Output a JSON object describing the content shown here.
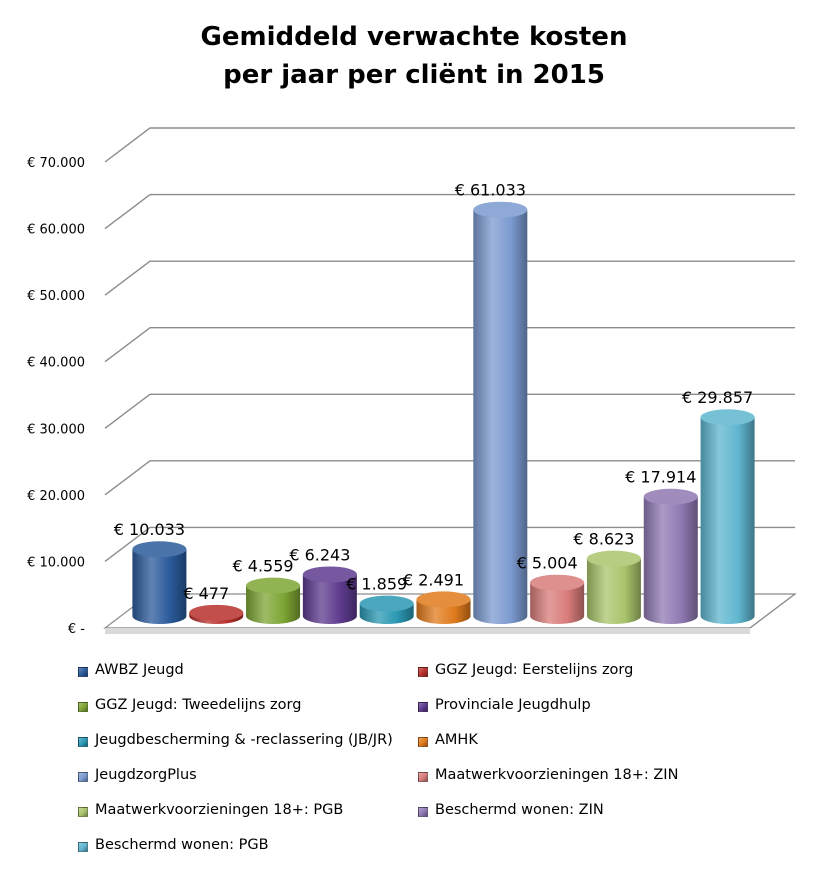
{
  "chart_data": {
    "type": "bar",
    "title": [
      "Gemiddeld verwachte kosten",
      "per jaar per cliënt in 2015"
    ],
    "ylim": [
      0,
      70000
    ],
    "yticks": [
      {
        "value": 0,
        "label": "€ -"
      },
      {
        "value": 10000,
        "label": "€ 10.000"
      },
      {
        "value": 20000,
        "label": "€ 20.000"
      },
      {
        "value": 30000,
        "label": "€ 30.000"
      },
      {
        "value": 40000,
        "label": "€ 40.000"
      },
      {
        "value": 50000,
        "label": "€ 50.000"
      },
      {
        "value": 60000,
        "label": "€ 60.000"
      },
      {
        "value": 70000,
        "label": "€ 70.000"
      }
    ],
    "grid": true,
    "legend_position": "bottom",
    "series": [
      {
        "name": "AWBZ Jeugd",
        "value": 10033,
        "label": "€ 10.033",
        "color": "#2a5a9b"
      },
      {
        "name": "GGZ Jeugd: Eerstelijns zorg",
        "value": 477,
        "label": "€ 477",
        "color": "#b8302c"
      },
      {
        "name": "GGZ Jeugd: Tweedelijns zorg",
        "value": 4559,
        "label": "€ 4.559",
        "color": "#7da534"
      },
      {
        "name": "Provinciale Jeugdhulp",
        "value": 6243,
        "label": "€ 6.243",
        "color": "#5d3a8e"
      },
      {
        "name": "Jeugdbescherming  & -reclassering (JB/JR)",
        "value": 1859,
        "label": "€ 1.859",
        "color": "#2a98b3"
      },
      {
        "name": "AMHK",
        "value": 2491,
        "label": "€ 2.491",
        "color": "#e07b1c"
      },
      {
        "name": "JeugdzorgPlus",
        "value": 61033,
        "label": "€ 61.033",
        "color": "#7b9ad0"
      },
      {
        "name": "Maatwerkvoorzieningen 18+: ZIN",
        "value": 5004,
        "label": "€ 5.004",
        "color": "#d87c7a"
      },
      {
        "name": "Maatwerkvoorzieningen 18+: PGB",
        "value": 8623,
        "label": "€ 8.623",
        "color": "#a9c46c"
      },
      {
        "name": "Beschermd wonen: ZIN",
        "value": 17914,
        "label": "€ 17.914",
        "color": "#8f79b3"
      },
      {
        "name": "Beschermd wonen: PGB",
        "value": 29857,
        "label": "€ 29.857",
        "color": "#5fb6cf"
      }
    ]
  }
}
